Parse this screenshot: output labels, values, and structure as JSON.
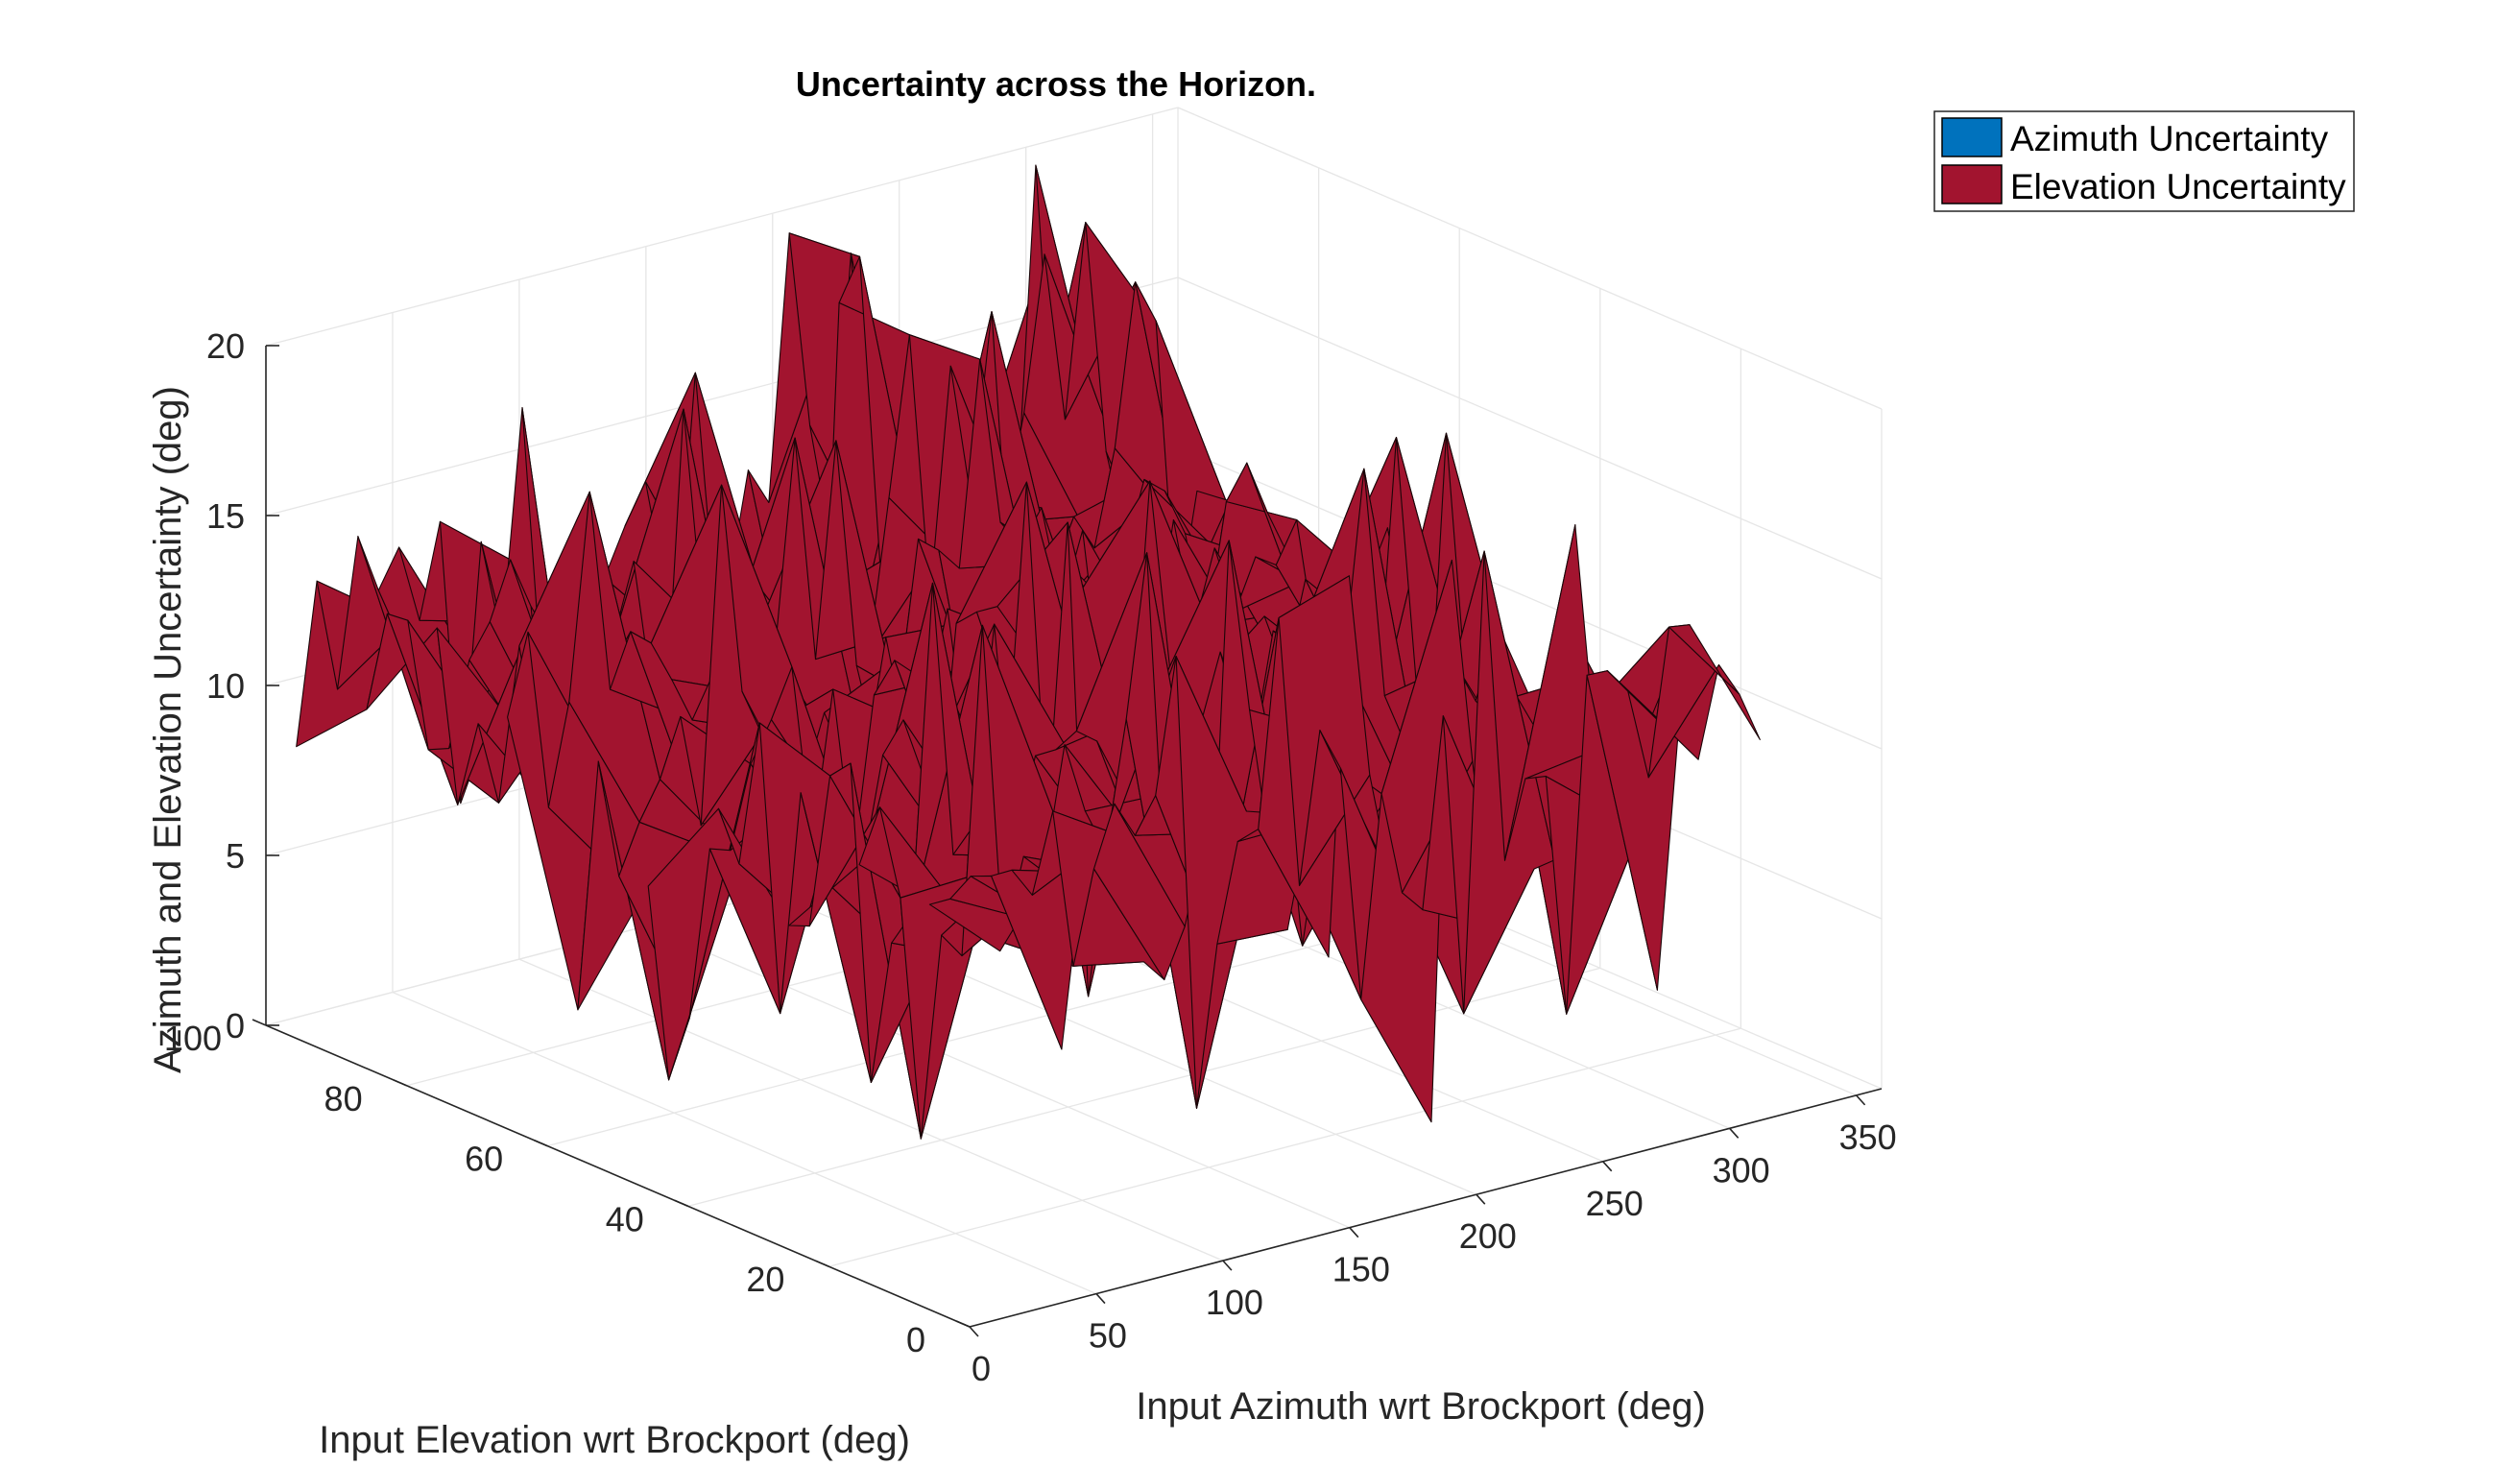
{
  "chart_data": {
    "type": "surface3d",
    "title": "Uncertainty across the Horizon.",
    "xlabel": "Input Azimuth wrt Brockport (deg)",
    "ylabel": "Input Elevation wrt Brockport (deg)",
    "zlabel": "Azimuth and Elevation Uncertainty (deg)",
    "xlim": [
      0,
      360
    ],
    "ylim": [
      0,
      100
    ],
    "zlim": [
      0,
      20
    ],
    "x_ticks": [
      "0",
      "50",
      "100",
      "150",
      "200",
      "250",
      "300",
      "350"
    ],
    "y_ticks": [
      "0",
      "20",
      "40",
      "60",
      "80",
      "100"
    ],
    "z_ticks": [
      "0",
      "5",
      "10",
      "15",
      "20"
    ],
    "grid": true,
    "legend_position": "top-right",
    "series": [
      {
        "name": "Azimuth Uncertainty",
        "color": "#0072BD"
      },
      {
        "name": "Elevation Uncertainty",
        "color": "#A2142F"
      }
    ],
    "surface_note_value_range": [
      0.5,
      19.5
    ]
  }
}
